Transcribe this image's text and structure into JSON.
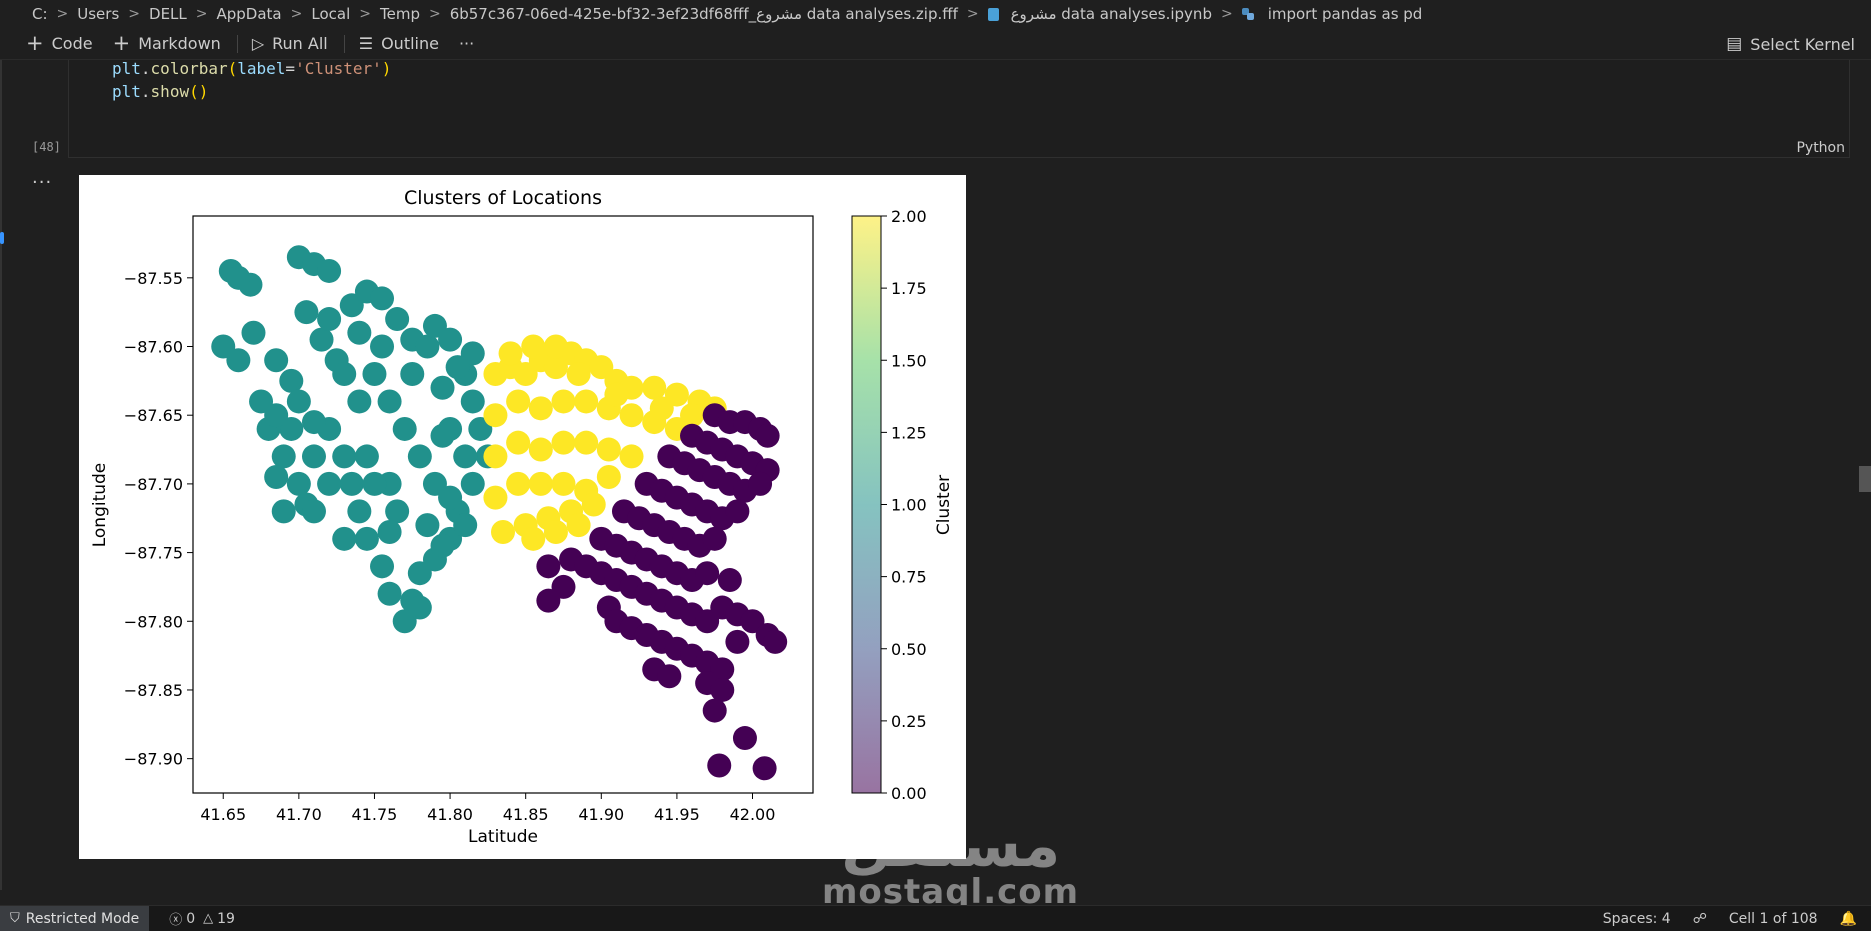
{
  "breadcrumb": {
    "items": [
      "C:",
      "Users",
      "DELL",
      "AppData",
      "Local",
      "Temp",
      "6b57c367-06ed-425e-bf32-3ef23df68fff_مشروع data analyses.zip.fff",
      "مشروع data analyses.ipynb",
      "import pandas as pd"
    ]
  },
  "toolbar": {
    "code_label": "Code",
    "markdown_label": "Markdown",
    "run_all_label": "Run All",
    "outline_label": "Outline",
    "more_label": "···",
    "kernel_label": "Select Kernel"
  },
  "cell": {
    "lines": [
      {
        "var": "plt",
        "fn": "colorbar",
        "param": "label",
        "str": "'Cluster'"
      },
      {
        "var": "plt",
        "fn": "show"
      }
    ],
    "execution_count": "[48]",
    "language": "Python",
    "output_ellipsis": "···"
  },
  "chart_data": {
    "type": "scatter",
    "title": "Clusters of Locations",
    "xlabel": "Latitude",
    "ylabel": "Longitude",
    "xlim": [
      41.63,
      42.04
    ],
    "ylim": [
      -87.925,
      -87.505
    ],
    "xticks": [
      "41.65",
      "41.70",
      "41.75",
      "41.80",
      "41.85",
      "41.90",
      "41.95",
      "42.00"
    ],
    "xtick_values": [
      41.65,
      41.7,
      41.75,
      41.8,
      41.85,
      41.9,
      41.95,
      42.0
    ],
    "yticks": [
      "−87.55",
      "−87.60",
      "−87.65",
      "−87.70",
      "−87.75",
      "−87.80",
      "−87.85",
      "−87.90"
    ],
    "ytick_values": [
      -87.55,
      -87.6,
      -87.65,
      -87.7,
      -87.75,
      -87.8,
      -87.85,
      -87.9
    ],
    "colorbar": {
      "label": "Cluster",
      "ticks": [
        "0.00",
        "0.25",
        "0.50",
        "0.75",
        "1.00",
        "1.25",
        "1.50",
        "1.75",
        "2.00"
      ],
      "tick_values": [
        0,
        0.25,
        0.5,
        0.75,
        1.0,
        1.25,
        1.5,
        1.75,
        2.0
      ],
      "range": [
        0,
        2
      ],
      "colormap": "viridis",
      "alpha": 0.5
    },
    "series": [
      {
        "name": "1",
        "color": "#21918c",
        "points": [
          [
            41.655,
            -87.545
          ],
          [
            41.668,
            -87.555
          ],
          [
            41.67,
            -87.59
          ],
          [
            41.685,
            -87.61
          ],
          [
            41.695,
            -87.625
          ],
          [
            41.7,
            -87.535
          ],
          [
            41.71,
            -87.54
          ],
          [
            41.72,
            -87.545
          ],
          [
            41.705,
            -87.575
          ],
          [
            41.715,
            -87.595
          ],
          [
            41.725,
            -87.61
          ],
          [
            41.735,
            -87.57
          ],
          [
            41.745,
            -87.56
          ],
          [
            41.755,
            -87.565
          ],
          [
            41.765,
            -87.58
          ],
          [
            41.775,
            -87.595
          ],
          [
            41.785,
            -87.6
          ],
          [
            41.79,
            -87.585
          ],
          [
            41.8,
            -87.595
          ],
          [
            41.81,
            -87.62
          ],
          [
            41.815,
            -87.64
          ],
          [
            41.82,
            -87.66
          ],
          [
            41.825,
            -87.68
          ],
          [
            41.815,
            -87.7
          ],
          [
            41.805,
            -87.72
          ],
          [
            41.8,
            -87.74
          ],
          [
            41.79,
            -87.755
          ],
          [
            41.78,
            -87.765
          ],
          [
            41.775,
            -87.785
          ],
          [
            41.77,
            -87.8
          ],
          [
            41.76,
            -87.78
          ],
          [
            41.755,
            -87.76
          ],
          [
            41.745,
            -87.74
          ],
          [
            41.74,
            -87.72
          ],
          [
            41.735,
            -87.7
          ],
          [
            41.73,
            -87.68
          ],
          [
            41.72,
            -87.66
          ],
          [
            41.71,
            -87.655
          ],
          [
            41.7,
            -87.64
          ],
          [
            41.695,
            -87.66
          ],
          [
            41.69,
            -87.68
          ],
          [
            41.685,
            -87.695
          ],
          [
            41.69,
            -87.72
          ],
          [
            41.7,
            -87.7
          ],
          [
            41.705,
            -87.715
          ],
          [
            41.71,
            -87.68
          ],
          [
            41.72,
            -87.7
          ],
          [
            41.73,
            -87.62
          ],
          [
            41.74,
            -87.64
          ],
          [
            41.75,
            -87.62
          ],
          [
            41.76,
            -87.64
          ],
          [
            41.77,
            -87.66
          ],
          [
            41.78,
            -87.68
          ],
          [
            41.79,
            -87.7
          ],
          [
            41.8,
            -87.66
          ],
          [
            41.81,
            -87.68
          ],
          [
            41.795,
            -87.63
          ],
          [
            41.775,
            -87.62
          ],
          [
            41.76,
            -87.7
          ],
          [
            41.765,
            -87.72
          ],
          [
            41.75,
            -87.7
          ],
          [
            41.745,
            -87.68
          ],
          [
            41.68,
            -87.66
          ],
          [
            41.675,
            -87.64
          ],
          [
            41.66,
            -87.61
          ],
          [
            41.65,
            -87.6
          ],
          [
            41.74,
            -87.59
          ],
          [
            41.755,
            -87.6
          ],
          [
            41.72,
            -87.58
          ],
          [
            41.785,
            -87.73
          ],
          [
            41.8,
            -87.71
          ],
          [
            41.81,
            -87.73
          ],
          [
            41.795,
            -87.745
          ],
          [
            41.73,
            -87.74
          ],
          [
            41.76,
            -87.735
          ],
          [
            41.685,
            -87.65
          ],
          [
            41.66,
            -87.55
          ],
          [
            41.78,
            -87.79
          ],
          [
            41.71,
            -87.72
          ],
          [
            41.795,
            -87.665
          ],
          [
            41.815,
            -87.605
          ],
          [
            41.805,
            -87.615
          ]
        ]
      },
      {
        "name": "2",
        "color": "#fde725",
        "points": [
          [
            41.83,
            -87.62
          ],
          [
            41.84,
            -87.615
          ],
          [
            41.85,
            -87.62
          ],
          [
            41.86,
            -87.61
          ],
          [
            41.87,
            -87.615
          ],
          [
            41.88,
            -87.605
          ],
          [
            41.89,
            -87.61
          ],
          [
            41.9,
            -87.615
          ],
          [
            41.91,
            -87.625
          ],
          [
            41.92,
            -87.63
          ],
          [
            41.935,
            -87.63
          ],
          [
            41.95,
            -87.635
          ],
          [
            41.965,
            -87.64
          ],
          [
            41.975,
            -87.645
          ],
          [
            41.83,
            -87.65
          ],
          [
            41.845,
            -87.64
          ],
          [
            41.86,
            -87.645
          ],
          [
            41.875,
            -87.64
          ],
          [
            41.89,
            -87.64
          ],
          [
            41.905,
            -87.645
          ],
          [
            41.92,
            -87.65
          ],
          [
            41.935,
            -87.655
          ],
          [
            41.95,
            -87.66
          ],
          [
            41.83,
            -87.68
          ],
          [
            41.845,
            -87.67
          ],
          [
            41.86,
            -87.675
          ],
          [
            41.875,
            -87.67
          ],
          [
            41.89,
            -87.67
          ],
          [
            41.905,
            -87.675
          ],
          [
            41.92,
            -87.68
          ],
          [
            41.83,
            -87.71
          ],
          [
            41.845,
            -87.7
          ],
          [
            41.86,
            -87.7
          ],
          [
            41.875,
            -87.7
          ],
          [
            41.89,
            -87.705
          ],
          [
            41.905,
            -87.695
          ],
          [
            41.835,
            -87.735
          ],
          [
            41.85,
            -87.73
          ],
          [
            41.865,
            -87.725
          ],
          [
            41.88,
            -87.72
          ],
          [
            41.895,
            -87.715
          ],
          [
            41.855,
            -87.74
          ],
          [
            41.87,
            -87.735
          ],
          [
            41.885,
            -87.73
          ],
          [
            41.84,
            -87.605
          ],
          [
            41.855,
            -87.6
          ],
          [
            41.87,
            -87.6
          ],
          [
            41.885,
            -87.62
          ],
          [
            41.91,
            -87.635
          ],
          [
            41.94,
            -87.645
          ],
          [
            41.96,
            -87.65
          ]
        ]
      },
      {
        "name": "0",
        "color": "#440154",
        "points": [
          [
            41.975,
            -87.65
          ],
          [
            41.985,
            -87.655
          ],
          [
            41.995,
            -87.655
          ],
          [
            42.005,
            -87.66
          ],
          [
            42.01,
            -87.665
          ],
          [
            41.96,
            -87.665
          ],
          [
            41.97,
            -87.67
          ],
          [
            41.98,
            -87.675
          ],
          [
            41.99,
            -87.68
          ],
          [
            42.0,
            -87.685
          ],
          [
            42.01,
            -87.69
          ],
          [
            41.945,
            -87.68
          ],
          [
            41.955,
            -87.685
          ],
          [
            41.965,
            -87.69
          ],
          [
            41.975,
            -87.695
          ],
          [
            41.985,
            -87.7
          ],
          [
            41.995,
            -87.705
          ],
          [
            42.005,
            -87.7
          ],
          [
            41.93,
            -87.7
          ],
          [
            41.94,
            -87.705
          ],
          [
            41.95,
            -87.71
          ],
          [
            41.96,
            -87.715
          ],
          [
            41.97,
            -87.72
          ],
          [
            41.98,
            -87.725
          ],
          [
            41.99,
            -87.72
          ],
          [
            41.915,
            -87.72
          ],
          [
            41.925,
            -87.725
          ],
          [
            41.935,
            -87.73
          ],
          [
            41.945,
            -87.735
          ],
          [
            41.955,
            -87.74
          ],
          [
            41.965,
            -87.745
          ],
          [
            41.975,
            -87.74
          ],
          [
            41.9,
            -87.74
          ],
          [
            41.91,
            -87.745
          ],
          [
            41.92,
            -87.75
          ],
          [
            41.93,
            -87.755
          ],
          [
            41.94,
            -87.76
          ],
          [
            41.95,
            -87.765
          ],
          [
            41.96,
            -87.77
          ],
          [
            41.97,
            -87.765
          ],
          [
            41.985,
            -87.77
          ],
          [
            41.88,
            -87.755
          ],
          [
            41.89,
            -87.76
          ],
          [
            41.9,
            -87.765
          ],
          [
            41.91,
            -87.77
          ],
          [
            41.92,
            -87.775
          ],
          [
            41.93,
            -87.78
          ],
          [
            41.94,
            -87.785
          ],
          [
            41.95,
            -87.79
          ],
          [
            41.96,
            -87.795
          ],
          [
            41.97,
            -87.8
          ],
          [
            41.98,
            -87.79
          ],
          [
            41.99,
            -87.795
          ],
          [
            42.0,
            -87.8
          ],
          [
            42.01,
            -87.81
          ],
          [
            42.015,
            -87.815
          ],
          [
            41.865,
            -87.76
          ],
          [
            41.875,
            -87.775
          ],
          [
            41.865,
            -87.785
          ],
          [
            41.905,
            -87.79
          ],
          [
            41.91,
            -87.8
          ],
          [
            41.92,
            -87.805
          ],
          [
            41.93,
            -87.81
          ],
          [
            41.94,
            -87.815
          ],
          [
            41.95,
            -87.82
          ],
          [
            41.96,
            -87.825
          ],
          [
            41.97,
            -87.83
          ],
          [
            41.98,
            -87.835
          ],
          [
            41.99,
            -87.815
          ],
          [
            41.935,
            -87.835
          ],
          [
            41.945,
            -87.84
          ],
          [
            41.97,
            -87.845
          ],
          [
            41.98,
            -87.85
          ],
          [
            41.975,
            -87.865
          ],
          [
            41.995,
            -87.885
          ],
          [
            41.978,
            -87.905
          ],
          [
            42.008,
            -87.907
          ]
        ]
      }
    ]
  },
  "watermark": {
    "arabic": "مستقل",
    "latin": "mostaql.com"
  },
  "status": {
    "restricted_label": "Restricted Mode",
    "errors": "0",
    "warnings": "19",
    "spaces": "Spaces: 4",
    "cell_position": "Cell 1 of 108"
  }
}
